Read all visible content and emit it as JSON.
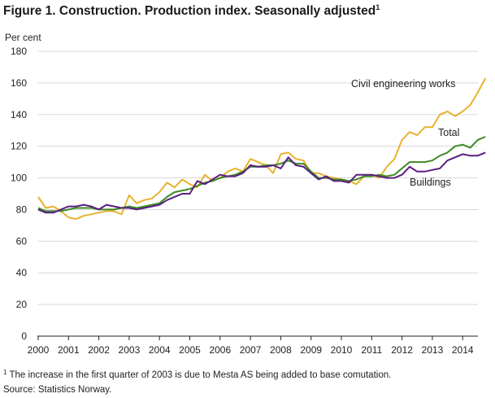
{
  "title_text": "Figure 1. Construction. Production index. Seasonally adjusted",
  "title_sup": "1",
  "footnote_sup": "1",
  "footnote_text": " The increase in the first quarter of 2003 is due to Mesta AS being added to base comutation.",
  "source": "Source: Statistics Norway.",
  "chart_data": {
    "type": "line",
    "title": "Figure 1. Construction. Production index. Seasonally adjusted",
    "ylabel": "Per cent",
    "xlabel": "",
    "ylim": [
      0,
      180
    ],
    "yticks": [
      0,
      20,
      40,
      60,
      80,
      100,
      120,
      140,
      160,
      180
    ],
    "xticks": [
      "2000",
      "2001",
      "2002",
      "2003",
      "2004",
      "2005",
      "2006",
      "2007",
      "2008",
      "2009",
      "2010",
      "2011",
      "2012",
      "2013",
      "2014"
    ],
    "x_start_year": 2000,
    "periods_per_year": 4,
    "grid": true,
    "colors": {
      "civil": "#e8b230",
      "total": "#3e8a24",
      "buildings": "#5a1e82",
      "grid": "#d9d9d9"
    },
    "series": [
      {
        "name": "Civil engineering works",
        "color": "#e8b230",
        "values": [
          88,
          81,
          82,
          79,
          75,
          74,
          76,
          77,
          78,
          79,
          79,
          77,
          89,
          84,
          86,
          87,
          91,
          97,
          94,
          99,
          96,
          94,
          102,
          98,
          100,
          104,
          106,
          104,
          112,
          110,
          108,
          103,
          115,
          116,
          112,
          111,
          103,
          103,
          101,
          100,
          99,
          98,
          96,
          101,
          102,
          100,
          107,
          112,
          124,
          129,
          127,
          132,
          132,
          140,
          142,
          139,
          142,
          146,
          154,
          163
        ]
      },
      {
        "name": "Total",
        "color": "#3e8a24",
        "values": [
          81,
          79,
          79,
          79,
          80,
          81,
          81,
          81,
          80,
          80,
          80,
          81,
          82,
          81,
          82,
          83,
          84,
          88,
          91,
          92,
          93,
          95,
          97,
          98,
          100,
          101,
          102,
          104,
          107,
          107,
          108,
          108,
          109,
          111,
          109,
          109,
          104,
          100,
          100,
          99,
          99,
          98,
          99,
          101,
          101,
          102,
          101,
          102,
          106,
          110,
          110,
          110,
          111,
          114,
          116,
          120,
          121,
          119,
          124,
          126
        ]
      },
      {
        "name": "Buildings",
        "color": "#5a1e82",
        "values": [
          80,
          78,
          78,
          80,
          82,
          82,
          83,
          82,
          80,
          83,
          82,
          81,
          81,
          80,
          81,
          82,
          83,
          86,
          88,
          90,
          90,
          98,
          96,
          99,
          102,
          101,
          101,
          103,
          108,
          107,
          107,
          108,
          106,
          113,
          108,
          107,
          103,
          99,
          101,
          98,
          98,
          97,
          102,
          102,
          102,
          101,
          100,
          100,
          102,
          107,
          104,
          104,
          105,
          106,
          111,
          113,
          115,
          114,
          114,
          116
        ]
      }
    ],
    "annotations": [
      "Civil engineering works",
      "Total",
      "Buildings"
    ]
  }
}
